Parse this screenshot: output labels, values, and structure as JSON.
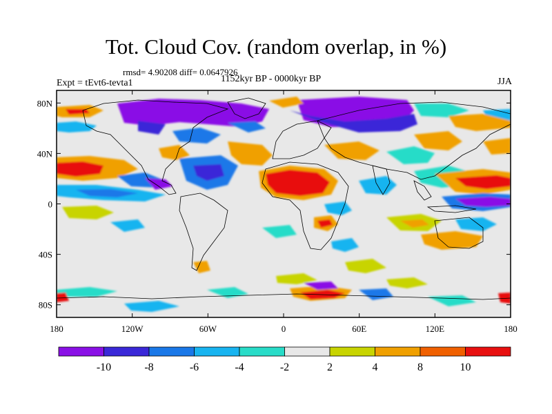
{
  "header": {
    "title": "Tot. Cloud Cov. (random overlap, in %)",
    "stats": "rmsd= 4.90208 diff= 0.0647926",
    "period": "1152kyr BP - 0000kyr BP",
    "experiment": "Expt = tEvt6-tevta1",
    "season": "JJA"
  },
  "map": {
    "lat_ticks": [
      "80N",
      "40N",
      "0",
      "40S",
      "80S"
    ],
    "lon_ticks": [
      "180",
      "120W",
      "60W",
      "0",
      "60E",
      "120E",
      "180"
    ],
    "lat_range": [
      -90,
      90
    ],
    "lon_range": [
      -180,
      180
    ],
    "background_color": "#e8e8e8",
    "coastline_color": "#000000"
  },
  "colorbar": {
    "labels": [
      "-10",
      "-8",
      "-6",
      "-4",
      "-2",
      "2",
      "4",
      "8",
      "10"
    ],
    "colors": [
      "#8a10e6",
      "#3a28d8",
      "#1a78e8",
      "#18b4f0",
      "#28dcc8",
      "#e8e8e8",
      "#c8d400",
      "#f0a000",
      "#f06000",
      "#e81010"
    ]
  }
}
